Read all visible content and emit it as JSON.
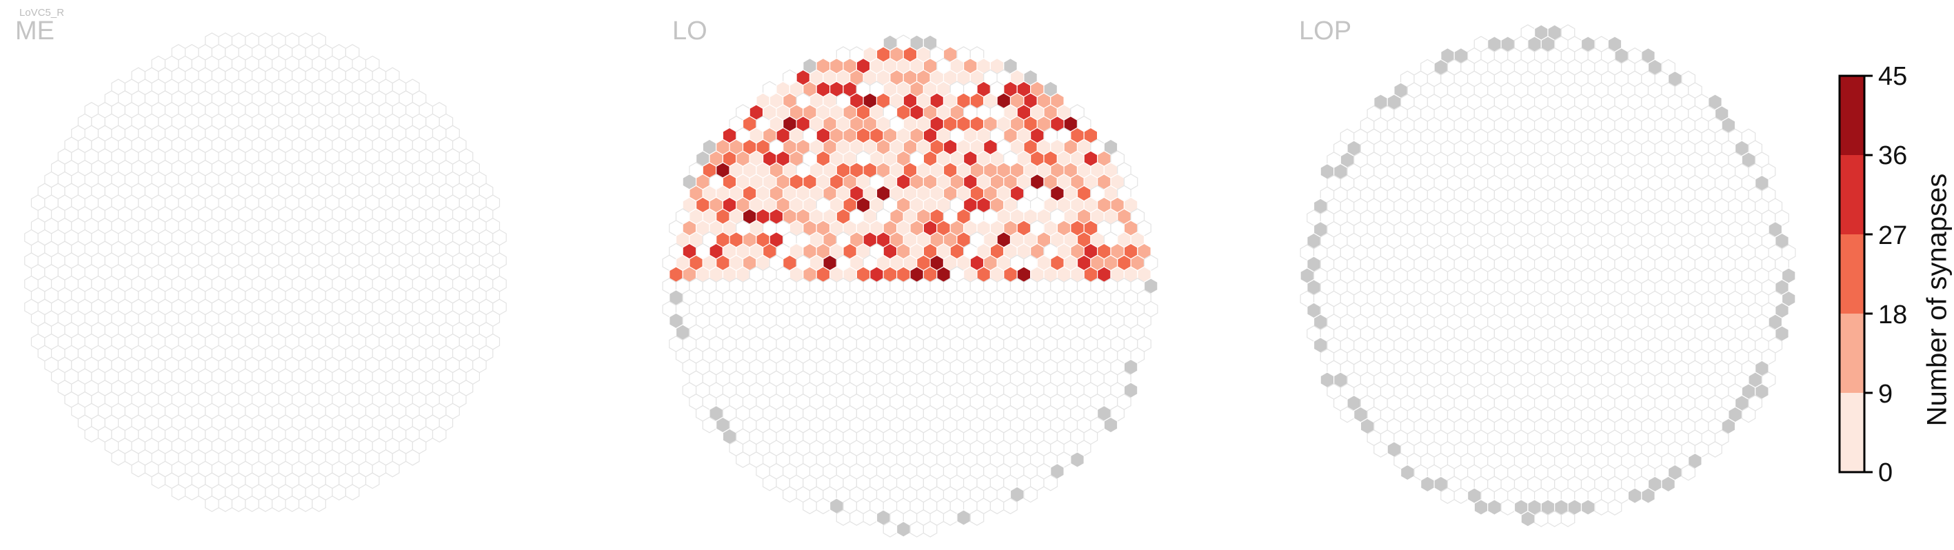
{
  "figure": {
    "cell_type_label": "LoVC5_R",
    "panels": [
      {
        "id": "ME",
        "label": "ME"
      },
      {
        "id": "LO",
        "label": "LO"
      },
      {
        "id": "LOP",
        "label": "LOP"
      }
    ]
  },
  "colors": {
    "empty_fill": "#ffffff",
    "empty_stroke": "#e3e3e3",
    "outside_region": "#c8c8c8",
    "scale": [
      "#fde8df",
      "#f9ad94",
      "#f26b4e",
      "#d72f2d",
      "#9e1117"
    ]
  },
  "chart_data": {
    "type": "heatmap",
    "description_axes": "hexagonal column map per neuropil",
    "colorbar": {
      "label": "Number of synapses",
      "ticks": [
        0,
        9,
        18,
        27,
        36,
        45
      ],
      "range": [
        0,
        45
      ],
      "bins": [
        [
          0,
          9
        ],
        [
          9,
          18
        ],
        [
          18,
          27
        ],
        [
          27,
          36
        ],
        [
          36,
          45
        ]
      ]
    },
    "panels": [
      {
        "region": "ME",
        "synapse_cells": "none"
      },
      {
        "region": "LO",
        "synapse_cells": "upper hemisphere",
        "max_value": 45
      },
      {
        "region": "LOP",
        "synapse_cells": "none"
      }
    ]
  }
}
